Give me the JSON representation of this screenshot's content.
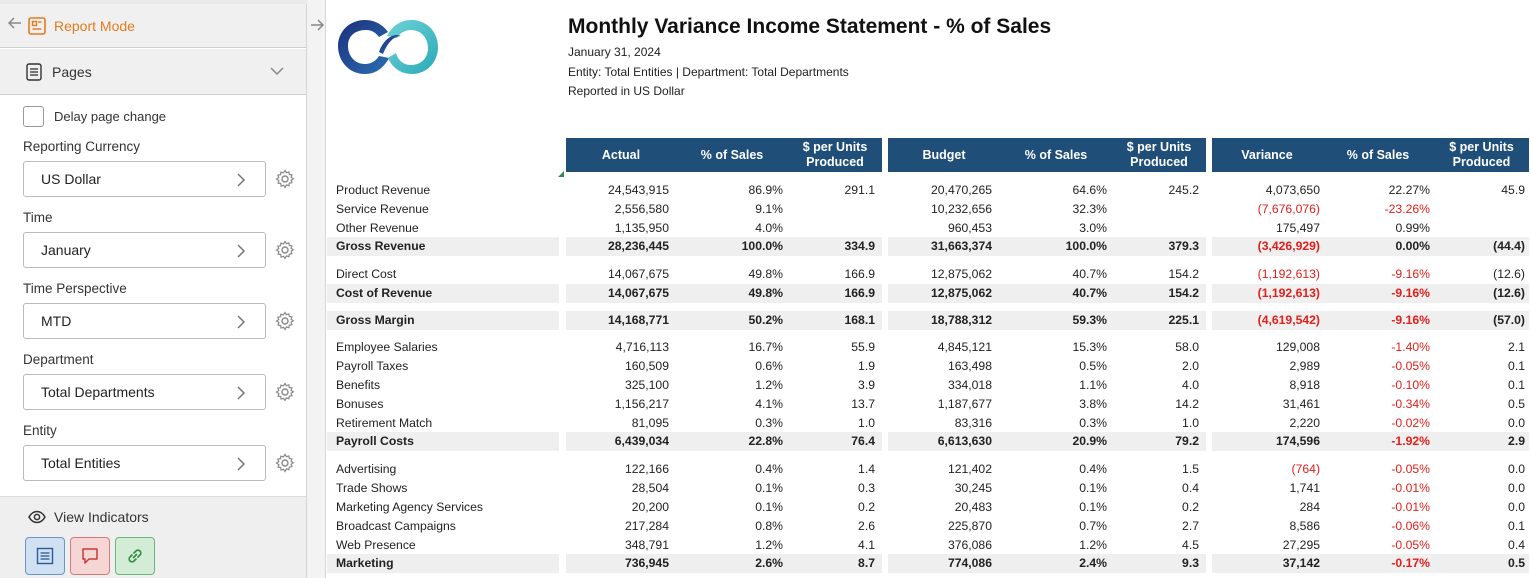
{
  "sidebar": {
    "report_mode_label": "Report Mode",
    "pages_label": "Pages",
    "delay_label": "Delay page change",
    "params": [
      {
        "label": "Reporting Currency",
        "value": "US Dollar"
      },
      {
        "label": "Time",
        "value": "January"
      },
      {
        "label": "Time Perspective",
        "value": "MTD"
      },
      {
        "label": "Department",
        "value": "Total Departments"
      },
      {
        "label": "Entity",
        "value": "Total Entities"
      }
    ],
    "view_indicators_label": "View Indicators"
  },
  "report": {
    "title": "Monthly Variance Income Statement - % of Sales",
    "date": "January 31, 2024",
    "entity_line": "Entity: Total Entities | Department: Total Departments",
    "currency_line": "Reported in US Dollar",
    "column_headers": [
      "Actual",
      "% of Sales",
      "$ per Units Produced",
      "Budget",
      "% of Sales",
      "$ per Units Produced",
      "Variance",
      "% of Sales",
      "$ per Units Produced"
    ],
    "rows": [
      {
        "label": "Product Revenue",
        "bold": false,
        "values": [
          "24,543,915",
          "86.9%",
          "291.1",
          "20,470,265",
          "64.6%",
          "245.2",
          "4,073,650",
          "22.27%",
          "45.9"
        ],
        "neg": [
          false,
          false,
          false,
          false,
          false,
          false,
          false,
          false,
          false
        ]
      },
      {
        "label": "Service Revenue",
        "bold": false,
        "values": [
          "2,556,580",
          "9.1%",
          "",
          "10,232,656",
          "32.3%",
          "",
          "(7,676,076)",
          "-23.26%",
          ""
        ],
        "neg": [
          false,
          false,
          false,
          false,
          false,
          false,
          true,
          true,
          false
        ]
      },
      {
        "label": "Other Revenue",
        "bold": false,
        "values": [
          "1,135,950",
          "4.0%",
          "",
          "960,453",
          "3.0%",
          "",
          "175,497",
          "0.99%",
          ""
        ],
        "neg": [
          false,
          false,
          false,
          false,
          false,
          false,
          false,
          false,
          false
        ]
      },
      {
        "label": "Gross Revenue",
        "bold": true,
        "values": [
          "28,236,445",
          "100.0%",
          "334.9",
          "31,663,374",
          "100.0%",
          "379.3",
          "(3,426,929)",
          "0.00%",
          "(44.4)"
        ],
        "neg": [
          false,
          false,
          false,
          false,
          false,
          false,
          true,
          false,
          false
        ]
      },
      {
        "label": "Direct Cost",
        "bold": false,
        "values": [
          "14,067,675",
          "49.8%",
          "166.9",
          "12,875,062",
          "40.7%",
          "154.2",
          "(1,192,613)",
          "-9.16%",
          "(12.6)"
        ],
        "neg": [
          false,
          false,
          false,
          false,
          false,
          false,
          true,
          true,
          false
        ]
      },
      {
        "label": "Cost of Revenue",
        "bold": true,
        "values": [
          "14,067,675",
          "49.8%",
          "166.9",
          "12,875,062",
          "40.7%",
          "154.2",
          "(1,192,613)",
          "-9.16%",
          "(12.6)"
        ],
        "neg": [
          false,
          false,
          false,
          false,
          false,
          false,
          true,
          true,
          false
        ]
      },
      {
        "label": "Gross Margin",
        "bold": true,
        "values": [
          "14,168,771",
          "50.2%",
          "168.1",
          "18,788,312",
          "59.3%",
          "225.1",
          "(4,619,542)",
          "-9.16%",
          "(57.0)"
        ],
        "neg": [
          false,
          false,
          false,
          false,
          false,
          false,
          true,
          true,
          false
        ]
      },
      {
        "label": "Employee Salaries",
        "bold": false,
        "values": [
          "4,716,113",
          "16.7%",
          "55.9",
          "4,845,121",
          "15.3%",
          "58.0",
          "129,008",
          "-1.40%",
          "2.1"
        ],
        "neg": [
          false,
          false,
          false,
          false,
          false,
          false,
          false,
          true,
          false
        ]
      },
      {
        "label": "Payroll Taxes",
        "bold": false,
        "values": [
          "160,509",
          "0.6%",
          "1.9",
          "163,498",
          "0.5%",
          "2.0",
          "2,989",
          "-0.05%",
          "0.1"
        ],
        "neg": [
          false,
          false,
          false,
          false,
          false,
          false,
          false,
          true,
          false
        ]
      },
      {
        "label": "Benefits",
        "bold": false,
        "values": [
          "325,100",
          "1.2%",
          "3.9",
          "334,018",
          "1.1%",
          "4.0",
          "8,918",
          "-0.10%",
          "0.1"
        ],
        "neg": [
          false,
          false,
          false,
          false,
          false,
          false,
          false,
          true,
          false
        ]
      },
      {
        "label": "Bonuses",
        "bold": false,
        "values": [
          "1,156,217",
          "4.1%",
          "13.7",
          "1,187,677",
          "3.8%",
          "14.2",
          "31,461",
          "-0.34%",
          "0.5"
        ],
        "neg": [
          false,
          false,
          false,
          false,
          false,
          false,
          false,
          true,
          false
        ]
      },
      {
        "label": "Retirement Match",
        "bold": false,
        "values": [
          "81,095",
          "0.3%",
          "1.0",
          "83,316",
          "0.3%",
          "1.0",
          "2,220",
          "-0.02%",
          "0.0"
        ],
        "neg": [
          false,
          false,
          false,
          false,
          false,
          false,
          false,
          true,
          false
        ]
      },
      {
        "label": "Payroll Costs",
        "bold": true,
        "values": [
          "6,439,034",
          "22.8%",
          "76.4",
          "6,613,630",
          "20.9%",
          "79.2",
          "174,596",
          "-1.92%",
          "2.9"
        ],
        "neg": [
          false,
          false,
          false,
          false,
          false,
          false,
          false,
          true,
          false
        ]
      },
      {
        "label": "Advertising",
        "bold": false,
        "values": [
          "122,166",
          "0.4%",
          "1.4",
          "121,402",
          "0.4%",
          "1.5",
          "(764)",
          "-0.05%",
          "0.0"
        ],
        "neg": [
          false,
          false,
          false,
          false,
          false,
          false,
          true,
          true,
          false
        ]
      },
      {
        "label": "Trade Shows",
        "bold": false,
        "values": [
          "28,504",
          "0.1%",
          "0.3",
          "30,245",
          "0.1%",
          "0.4",
          "1,741",
          "-0.01%",
          "0.0"
        ],
        "neg": [
          false,
          false,
          false,
          false,
          false,
          false,
          false,
          true,
          false
        ]
      },
      {
        "label": "Marketing Agency Services",
        "bold": false,
        "values": [
          "20,200",
          "0.1%",
          "0.2",
          "20,483",
          "0.1%",
          "0.2",
          "284",
          "-0.01%",
          "0.0"
        ],
        "neg": [
          false,
          false,
          false,
          false,
          false,
          false,
          false,
          true,
          false
        ]
      },
      {
        "label": "Broadcast Campaigns",
        "bold": false,
        "values": [
          "217,284",
          "0.8%",
          "2.6",
          "225,870",
          "0.7%",
          "2.7",
          "8,586",
          "-0.06%",
          "0.1"
        ],
        "neg": [
          false,
          false,
          false,
          false,
          false,
          false,
          false,
          true,
          false
        ]
      },
      {
        "label": "Web Presence",
        "bold": false,
        "values": [
          "348,791",
          "1.2%",
          "4.1",
          "376,086",
          "1.2%",
          "4.5",
          "27,295",
          "-0.05%",
          "0.4"
        ],
        "neg": [
          false,
          false,
          false,
          false,
          false,
          false,
          false,
          true,
          false
        ]
      },
      {
        "label": "Marketing",
        "bold": true,
        "values": [
          "736,945",
          "2.6%",
          "8.7",
          "774,086",
          "2.4%",
          "9.3",
          "37,142",
          "-0.17%",
          "0.5"
        ],
        "neg": [
          false,
          false,
          false,
          false,
          false,
          false,
          false,
          true,
          false
        ]
      }
    ]
  }
}
